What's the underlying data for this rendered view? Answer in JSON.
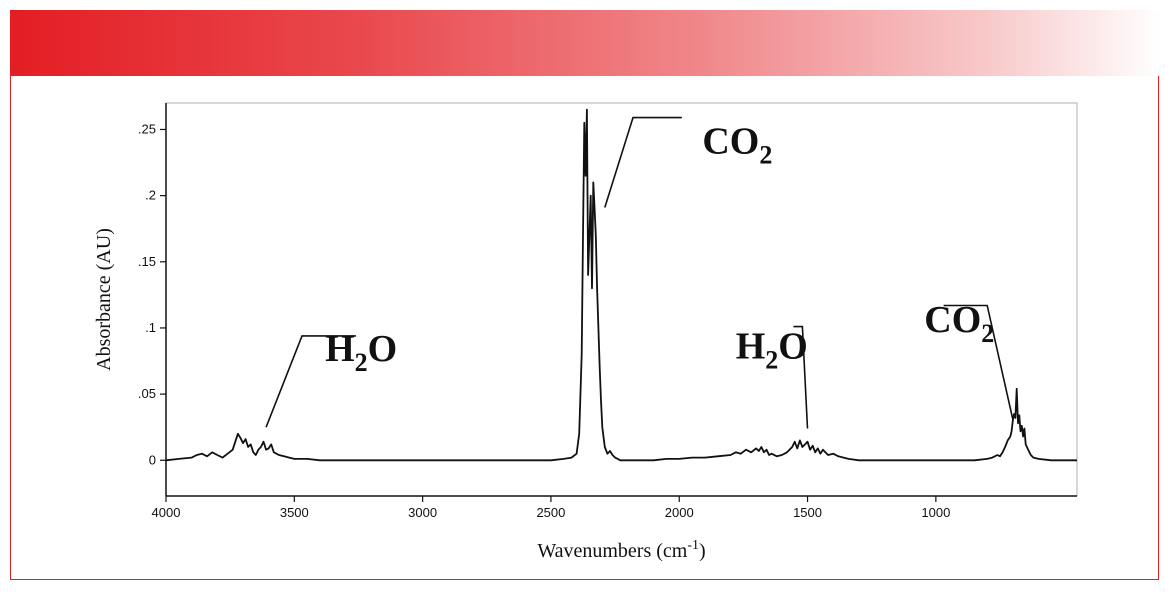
{
  "chart_data": {
    "type": "line",
    "title": "",
    "xlabel": "Wavenumbers (cm",
    "xlabel_sup": "-1",
    "xlabel_close": ")",
    "ylabel": "Absorbance (AU)",
    "xlim": [
      4000,
      450
    ],
    "ylim": [
      -0.027,
      0.27
    ],
    "x_ticks": [
      4000,
      3500,
      3000,
      2500,
      2000,
      1500,
      1000
    ],
    "x_tick_labels": [
      "4000",
      "3500",
      "3000",
      "2500",
      "2000",
      "1500",
      "1000"
    ],
    "y_ticks": [
      0,
      0.05,
      0.1,
      0.15,
      0.2,
      0.25
    ],
    "y_tick_labels": [
      "0",
      ".05",
      ".1",
      ".15",
      ".2",
      ".25"
    ],
    "grid": false,
    "legend": "none",
    "line_color": "#111111",
    "series": [
      {
        "x": [
          4000,
          3950,
          3900,
          3880,
          3860,
          3840,
          3820,
          3800,
          3780,
          3760,
          3740,
          3730,
          3720,
          3710,
          3700,
          3690,
          3680,
          3670,
          3660,
          3650,
          3640,
          3630,
          3620,
          3610,
          3600,
          3590,
          3580,
          3560,
          3540,
          3520,
          3500,
          3450,
          3400,
          3300,
          3200,
          3100,
          3000,
          2900,
          2800,
          2700,
          2600,
          2500,
          2450,
          2420,
          2400,
          2390,
          2380,
          2375,
          2370,
          2365,
          2360,
          2355,
          2350,
          2345,
          2340,
          2335,
          2330,
          2325,
          2320,
          2315,
          2310,
          2305,
          2300,
          2290,
          2280,
          2270,
          2260,
          2250,
          2240,
          2230,
          2200,
          2150,
          2100,
          2050,
          2000,
          1950,
          1900,
          1850,
          1800,
          1780,
          1760,
          1740,
          1720,
          1700,
          1690,
          1680,
          1670,
          1660,
          1650,
          1640,
          1620,
          1600,
          1580,
          1560,
          1550,
          1540,
          1530,
          1520,
          1510,
          1500,
          1490,
          1480,
          1470,
          1460,
          1450,
          1440,
          1420,
          1400,
          1380,
          1360,
          1340,
          1300,
          1250,
          1200,
          1150,
          1100,
          1050,
          1000,
          950,
          900,
          850,
          800,
          780,
          760,
          750,
          740,
          730,
          720,
          710,
          705,
          700,
          695,
          690,
          685,
          680,
          675,
          670,
          665,
          660,
          655,
          650,
          640,
          630,
          620,
          600,
          550,
          500,
          450
        ],
        "y": [
          0,
          0.001,
          0.002,
          0.004,
          0.005,
          0.003,
          0.006,
          0.004,
          0.002,
          0.005,
          0.008,
          0.014,
          0.02,
          0.017,
          0.013,
          0.016,
          0.01,
          0.012,
          0.006,
          0.004,
          0.008,
          0.01,
          0.014,
          0.008,
          0.009,
          0.012,
          0.006,
          0.004,
          0.003,
          0.002,
          0.001,
          0.001,
          0,
          0,
          0,
          0,
          0,
          0,
          0,
          0,
          0,
          0,
          0.001,
          0.002,
          0.005,
          0.02,
          0.08,
          0.17,
          0.255,
          0.215,
          0.265,
          0.14,
          0.17,
          0.2,
          0.13,
          0.21,
          0.19,
          0.17,
          0.13,
          0.1,
          0.07,
          0.045,
          0.025,
          0.01,
          0.005,
          0.007,
          0.004,
          0.002,
          0.001,
          0,
          0,
          0,
          0,
          0.001,
          0.001,
          0.002,
          0.002,
          0.003,
          0.004,
          0.006,
          0.005,
          0.008,
          0.006,
          0.009,
          0.007,
          0.01,
          0.006,
          0.008,
          0.004,
          0.005,
          0.003,
          0.004,
          0.006,
          0.01,
          0.014,
          0.009,
          0.015,
          0.01,
          0.012,
          0.014,
          0.008,
          0.011,
          0.006,
          0.009,
          0.005,
          0.008,
          0.004,
          0.005,
          0.003,
          0.002,
          0.001,
          0,
          0,
          0,
          0,
          0,
          0,
          0,
          0,
          0,
          0,
          0.001,
          0.002,
          0.004,
          0.003,
          0.006,
          0.01,
          0.015,
          0.018,
          0.022,
          0.03,
          0.035,
          0.032,
          0.054,
          0.028,
          0.034,
          0.022,
          0.026,
          0.018,
          0.024,
          0.012,
          0.008,
          0.004,
          0.002,
          0.001,
          0,
          0,
          0
        ]
      }
    ],
    "annotations": [
      {
        "base": "H",
        "sub": "2",
        "tail": "O",
        "x": 3380,
        "y": 0.075,
        "line": [
          [
            3610,
            0.025
          ],
          [
            3470,
            0.094
          ],
          [
            3260,
            0.094
          ]
        ]
      },
      {
        "base": "CO",
        "sub": "2",
        "tail": "",
        "x": 1910,
        "y": 0.232,
        "line": [
          [
            2290,
            0.191
          ],
          [
            2180,
            0.259
          ],
          [
            1990,
            0.259
          ]
        ]
      },
      {
        "base": "H",
        "sub": "2",
        "tail": "O",
        "x": 1780,
        "y": 0.077,
        "line": [
          [
            1500,
            0.024
          ],
          [
            1520,
            0.101
          ],
          [
            1555,
            0.101
          ]
        ]
      },
      {
        "base": "CO",
        "sub": "2",
        "tail": "",
        "x": 1045,
        "y": 0.097,
        "line": [
          [
            700,
            0.031
          ],
          [
            800,
            0.117
          ],
          [
            970,
            0.117
          ]
        ]
      }
    ]
  }
}
